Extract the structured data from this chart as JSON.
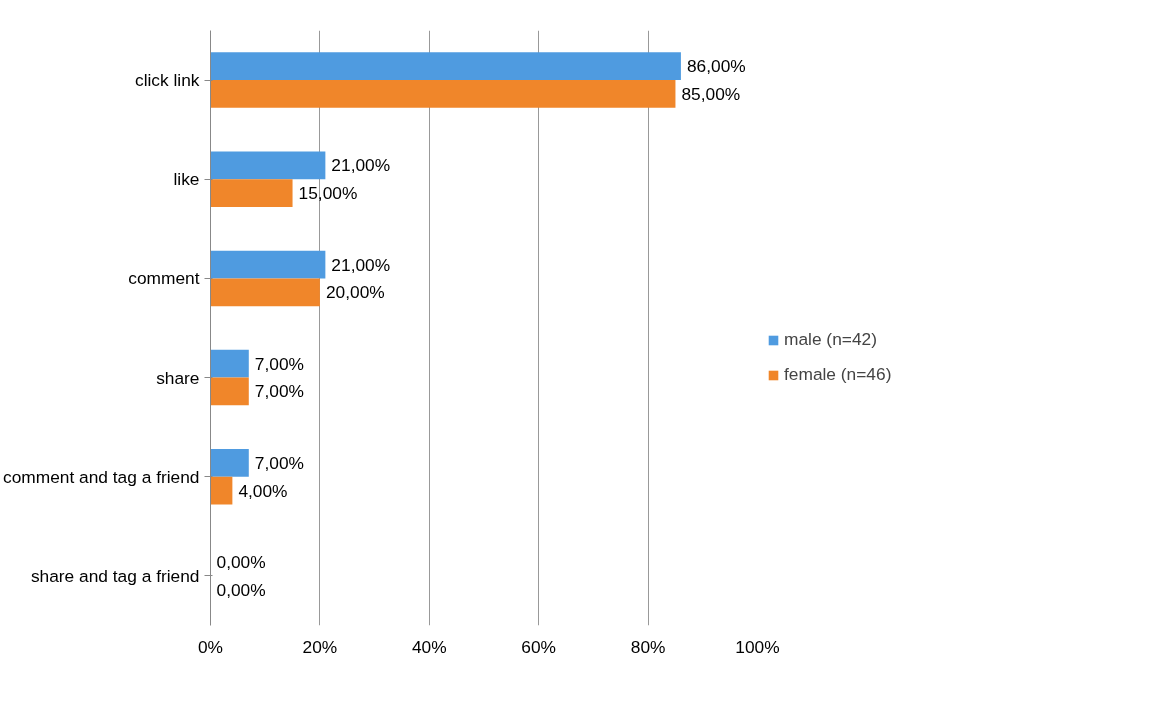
{
  "chart_data": {
    "type": "bar",
    "orientation": "horizontal",
    "categories": [
      "click link",
      "like",
      "comment",
      "share",
      "comment and tag a friend",
      "share and tag a friend"
    ],
    "series": [
      {
        "name": "male (n=42)",
        "color": "#4f9be0",
        "values": [
          86,
          21,
          21,
          7,
          7,
          0
        ],
        "value_labels": [
          "86,00%",
          "21,00%",
          "21,00%",
          "7,00%",
          "7,00%",
          "0,00%"
        ]
      },
      {
        "name": "female (n=46)",
        "color": "#f0862a",
        "values": [
          85,
          15,
          20,
          7,
          4,
          0
        ],
        "value_labels": [
          "85,00%",
          "15,00%",
          "20,00%",
          "7,00%",
          "4,00%",
          "0,00%"
        ]
      }
    ],
    "xlim": [
      0,
      100
    ],
    "xticks": [
      {
        "value": 0,
        "label": "0%"
      },
      {
        "value": 20,
        "label": "20%"
      },
      {
        "value": 40,
        "label": "40%"
      },
      {
        "value": 60,
        "label": "60%"
      },
      {
        "value": 80,
        "label": "80%"
      },
      {
        "value": 100,
        "label": "100%"
      }
    ],
    "grid": "x",
    "legend": "right"
  }
}
